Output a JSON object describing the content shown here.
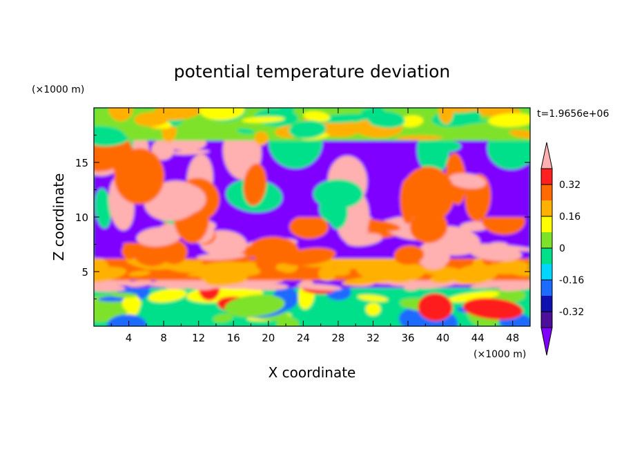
{
  "chart_data": {
    "type": "heatmap",
    "title": "potential temperature deviation",
    "xlabel": "X coordinate",
    "ylabel": "Z coordinate",
    "x_unit": "(×1000 m)",
    "y_unit": "(×1000 m)",
    "time_label": "t=1.9656e+06",
    "xlim": [
      0,
      50
    ],
    "ylim": [
      0,
      20
    ],
    "x_ticks": [
      4,
      8,
      12,
      16,
      20,
      24,
      28,
      32,
      36,
      40,
      44,
      48
    ],
    "x_tick_labels": [
      "4",
      "8",
      "12",
      "16",
      "20",
      "24",
      "28",
      "32",
      "36",
      "40",
      "44",
      "48"
    ],
    "y_ticks": [
      5,
      10,
      15
    ],
    "y_tick_labels": [
      "5",
      "10",
      "15"
    ],
    "colorbar": {
      "levels": [
        -0.4,
        -0.32,
        -0.24,
        -0.16,
        -0.08,
        0,
        0.08,
        0.16,
        0.24,
        0.32,
        0.4
      ],
      "colors": [
        "#7f00ff",
        "#4b0f9a",
        "#1010b0",
        "#1e6bff",
        "#00d7ff",
        "#00e08a",
        "#7fe22a",
        "#ffff00",
        "#ffb000",
        "#ff6a00",
        "#ff1f1f",
        "#ffb0b0"
      ],
      "tick_labels": [
        "0.32",
        "0.16",
        "0",
        "-0.16",
        "-0.32"
      ],
      "tick_values": [
        0.32,
        0.16,
        0,
        -0.16,
        -0.32
      ],
      "extend": "both"
    },
    "bands": [
      {
        "z_range": [
          0,
          3.5
        ],
        "dominant": [
          "#00e08a",
          "#7fe22a",
          "#1e6bff",
          "#ffff00",
          "#ff1f1f"
        ]
      },
      {
        "z_range": [
          3.5,
          4.2
        ],
        "dominant": [
          "#7f00ff",
          "#ffb0b0"
        ]
      },
      {
        "z_range": [
          4.2,
          6.2
        ],
        "dominant": [
          "#ff6a00",
          "#ffb000"
        ]
      },
      {
        "z_range": [
          6.2,
          10
        ],
        "dominant": [
          "#7f00ff",
          "#ffb0b0",
          "#ff6a00"
        ]
      },
      {
        "z_range": [
          10,
          17
        ],
        "dominant": [
          "#7f00ff",
          "#ffb0b0",
          "#ff6a00",
          "#00e08a"
        ]
      },
      {
        "z_range": [
          17,
          20
        ],
        "dominant": [
          "#7fe22a",
          "#00e08a",
          "#ffff00",
          "#ffb000"
        ]
      }
    ]
  }
}
